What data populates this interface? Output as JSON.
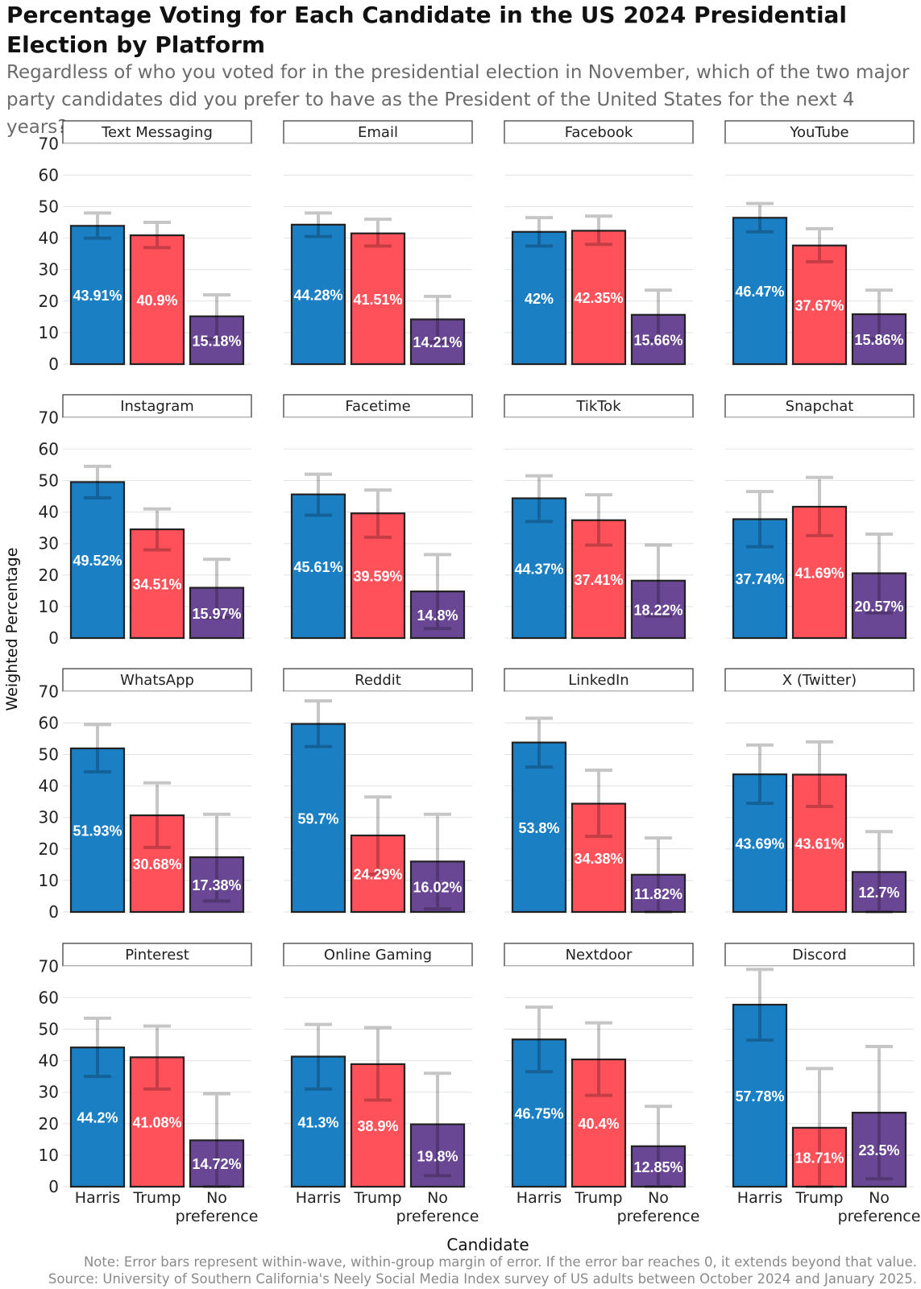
{
  "chart_data": {
    "type": "bar",
    "title": "Percentage Voting for Each Candidate in the US 2024 Presidential Election by Platform",
    "subtitle": "Regardless of who you voted for in the presidential election in November, which of the two major party candidates did you prefer to have as the President of the United States for the next 4 years?",
    "xlabel": "Candidate",
    "ylabel": "Weighted Percentage",
    "ylim": [
      0,
      70
    ],
    "yticks": [
      0,
      10,
      20,
      30,
      40,
      50,
      60,
      70
    ],
    "categories": [
      "Harris",
      "Trump",
      "No preference"
    ],
    "colors": [
      "#1b7fc4",
      "#ff5159",
      "#6a4794"
    ],
    "grid": true,
    "facets": [
      {
        "name": "Text Messaging",
        "values": [
          43.91,
          40.9,
          15.18
        ],
        "labels": [
          "43.91%",
          "40.9%",
          "15.18%"
        ],
        "err_low": [
          40,
          37,
          8
        ],
        "err_high": [
          48,
          45,
          22
        ]
      },
      {
        "name": "Email",
        "values": [
          44.28,
          41.51,
          14.21
        ],
        "labels": [
          "44.28%",
          "41.51%",
          "14.21%"
        ],
        "err_low": [
          40.5,
          37.5,
          7
        ],
        "err_high": [
          48,
          46,
          21.5
        ]
      },
      {
        "name": "Facebook",
        "values": [
          42,
          42.35,
          15.66
        ],
        "labels": [
          "42%",
          "42.35%",
          "15.66%"
        ],
        "err_low": [
          37.5,
          38,
          7.5
        ],
        "err_high": [
          46.5,
          47,
          23.5
        ]
      },
      {
        "name": "YouTube",
        "values": [
          46.47,
          37.67,
          15.86
        ],
        "labels": [
          "46.47%",
          "37.67%",
          "15.86%"
        ],
        "err_low": [
          42,
          32.5,
          8
        ],
        "err_high": [
          51,
          43,
          23.5
        ]
      },
      {
        "name": "Instagram",
        "values": [
          49.52,
          34.51,
          15.97
        ],
        "labels": [
          "49.52%",
          "34.51%",
          "15.97%"
        ],
        "err_low": [
          44.5,
          28,
          6.5
        ],
        "err_high": [
          54.5,
          41,
          25
        ]
      },
      {
        "name": "Facetime",
        "values": [
          45.61,
          39.59,
          14.8
        ],
        "labels": [
          "45.61%",
          "39.59%",
          "14.8%"
        ],
        "err_low": [
          39,
          32,
          3
        ],
        "err_high": [
          52,
          47,
          26.5
        ]
      },
      {
        "name": "TikTok",
        "values": [
          44.37,
          37.41,
          18.22
        ],
        "labels": [
          "44.37%",
          "37.41%",
          "18.22%"
        ],
        "err_low": [
          37,
          29.5,
          7
        ],
        "err_high": [
          51.5,
          45.5,
          29.5
        ]
      },
      {
        "name": "Snapchat",
        "values": [
          37.74,
          41.69,
          20.57
        ],
        "labels": [
          "37.74%",
          "41.69%",
          "20.57%"
        ],
        "err_low": [
          29,
          32.5,
          8
        ],
        "err_high": [
          46.5,
          51,
          33
        ]
      },
      {
        "name": "WhatsApp",
        "values": [
          51.93,
          30.68,
          17.38
        ],
        "labels": [
          "51.93%",
          "30.68%",
          "17.38%"
        ],
        "err_low": [
          44.5,
          20.5,
          3.5
        ],
        "err_high": [
          59.5,
          41,
          31
        ]
      },
      {
        "name": "Reddit",
        "values": [
          59.7,
          24.29,
          16.02
        ],
        "labels": [
          "59.7%",
          "24.29%",
          "16.02%"
        ],
        "err_low": [
          52.5,
          12,
          1
        ],
        "err_high": [
          67,
          36.5,
          31
        ]
      },
      {
        "name": "LinkedIn",
        "values": [
          53.8,
          34.38,
          11.82
        ],
        "labels": [
          "53.8%",
          "34.38%",
          "11.82%"
        ],
        "err_low": [
          46,
          24,
          0
        ],
        "err_high": [
          61.5,
          45,
          23.5
        ]
      },
      {
        "name": "X (Twitter)",
        "values": [
          43.69,
          43.61,
          12.7
        ],
        "labels": [
          "43.69%",
          "43.61%",
          "12.7%"
        ],
        "err_low": [
          34.5,
          33.5,
          0
        ],
        "err_high": [
          53,
          54,
          25.5
        ]
      },
      {
        "name": "Pinterest",
        "values": [
          44.2,
          41.08,
          14.72
        ],
        "labels": [
          "44.2%",
          "41.08%",
          "14.72%"
        ],
        "err_low": [
          35,
          31,
          0
        ],
        "err_high": [
          53.5,
          51,
          29.5
        ]
      },
      {
        "name": "Online Gaming",
        "values": [
          41.3,
          38.9,
          19.8
        ],
        "labels": [
          "41.3%",
          "38.9%",
          "19.8%"
        ],
        "err_low": [
          31,
          27.5,
          3.5
        ],
        "err_high": [
          51.5,
          50.5,
          36
        ]
      },
      {
        "name": "Nextdoor",
        "values": [
          46.75,
          40.4,
          12.85
        ],
        "labels": [
          "46.75%",
          "40.4%",
          "12.85%"
        ],
        "err_low": [
          36.5,
          29,
          0
        ],
        "err_high": [
          57,
          52,
          25.5
        ]
      },
      {
        "name": "Discord",
        "values": [
          57.78,
          18.71,
          23.5
        ],
        "labels": [
          "57.78%",
          "18.71%",
          "23.5%"
        ],
        "err_low": [
          46.5,
          0,
          2.5
        ],
        "err_high": [
          69,
          37.5,
          44.5
        ]
      }
    ],
    "notes": [
      "Note: Error bars represent within-wave, within-group margin of error. If the error bar reaches 0, it extends beyond that value.",
      "Source: University of Southern California's Neely Social Media Index survey of US adults between October 2024 and January 2025."
    ]
  }
}
